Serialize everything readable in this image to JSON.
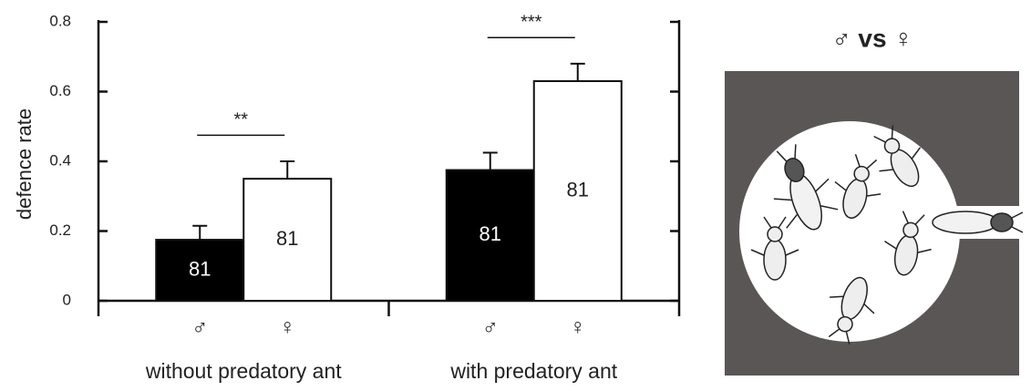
{
  "chart_data": {
    "type": "bar",
    "y_label": "defence rate",
    "groups": [
      "without predatory ant",
      "with predatory ant"
    ],
    "ylim": [
      0,
      0.8
    ],
    "yticks": [
      0,
      0.2,
      0.4,
      0.6,
      0.8
    ],
    "series": [
      {
        "name": "♂",
        "color": "#000000",
        "values": [
          0.175,
          0.375
        ],
        "errors": [
          0.04,
          0.05
        ],
        "n": [
          81,
          81
        ]
      },
      {
        "name": "♀",
        "color": "#ffffff",
        "values": [
          0.35,
          0.63
        ],
        "errors": [
          0.05,
          0.05
        ],
        "n": [
          81,
          81
        ]
      }
    ],
    "significance": [
      "**",
      "***"
    ]
  },
  "diagram": {
    "title": "♂ vs ♀"
  }
}
